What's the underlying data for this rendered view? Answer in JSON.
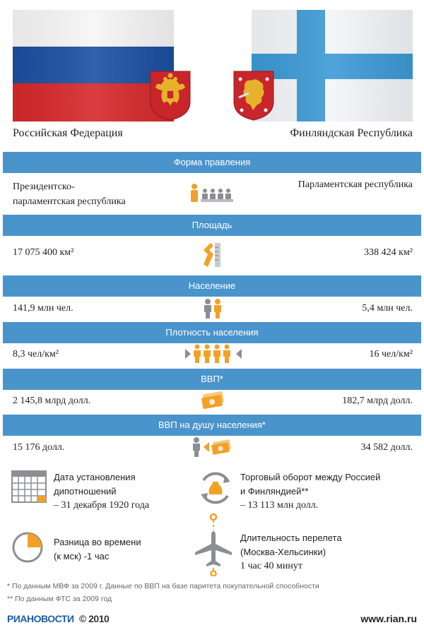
{
  "countries": {
    "left_name": "Российская Федерация",
    "right_name": "Финляндская Республика"
  },
  "colors": {
    "bar_blue": "#4a94cc",
    "accent_orange": "#f2a128",
    "gray_icon": "#8b8f94",
    "russia_white": "#ffffff",
    "russia_blue": "#1c4fa1",
    "russia_red": "#d6282a",
    "finland_blue": "#3c9ad6"
  },
  "rows": [
    {
      "header": "Форма правления",
      "left": "Президентско-\nпарламентская республика",
      "right": "Парламентская республика",
      "icon": "government-icon"
    },
    {
      "header": "Площадь",
      "left": "17 075 400 км²",
      "right": "338 424  км²",
      "icon": "area-ruler-icon"
    },
    {
      "header": "Население",
      "left": "141,9 млн чел.",
      "right": "5,4  млн чел.",
      "icon": "population-people-icon"
    },
    {
      "header": "Плотность населения",
      "left": "8,3 чел/км²",
      "right": "16 чел/км²",
      "icon": "density-people-icon"
    },
    {
      "header": "ВВП*",
      "left": "2 145,8 млрд долл.",
      "right": "182,7  млрд долл.",
      "icon": "money-icon"
    },
    {
      "header": "ВВП на душу населения*",
      "left": "15 176 долл.",
      "right": "34 582 долл.",
      "icon": "person-money-icon"
    }
  ],
  "info": {
    "diplomacy": {
      "line1": "Дата установления",
      "line2": "дипотношений",
      "line3": "– 31 декабря 1920 года"
    },
    "trade": {
      "line1": "Торговый оборот между Россией",
      "line2": "и Финляндией**",
      "line3": "– 13 113 млн долл."
    },
    "timezone": {
      "line1": "Разница во времени",
      "line2": "(к мск) -1 час"
    },
    "flight": {
      "line1": "Длительность перелета",
      "line2": "(Москва-Хельсинки)",
      "line3": "1 час 40 минут"
    }
  },
  "footnotes": {
    "note1": "* По данным МВФ за 2009 г. Данные по ВВП на базе паритета покупательной способности",
    "note2": "** По данным ФТС за 2009 год"
  },
  "branding": {
    "logo": "РИАНОВОСТИ",
    "copyright": "© 2010",
    "site": "www.rian.ru"
  }
}
